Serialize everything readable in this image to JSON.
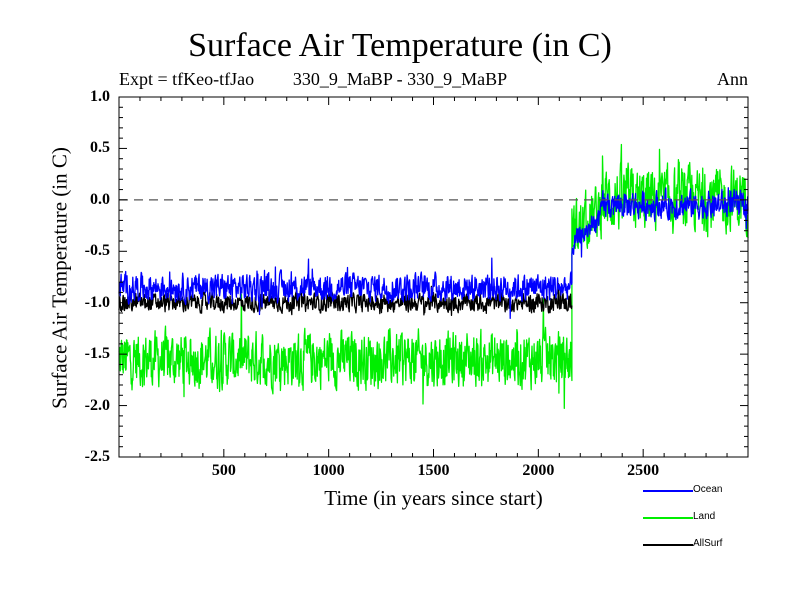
{
  "chart_data": {
    "type": "line",
    "title": "Surface Air Temperature (in C)",
    "subtitle": "330_9_MaBP - 330_9_MaBP",
    "experiment": "Expt = tfKeo-tfJao",
    "season": "Ann",
    "xlabel": "Time (in years since start)",
    "ylabel": "Surface Air Temperature (in C)",
    "xlim": [
      0,
      3000
    ],
    "ylim": [
      -2.5,
      1.0
    ],
    "xticks": [
      "500",
      "1000",
      "1500",
      "2000",
      "2500"
    ],
    "yticks": [
      "1.0",
      "0.5",
      "0.0",
      "-0.5",
      "-1.0",
      "-1.5",
      "-2.0",
      "-2.5"
    ],
    "reference_line": {
      "y": 0.0,
      "style": "dashed"
    },
    "legend_position": "below-right",
    "series": [
      {
        "name": "Land",
        "color": "#00ee00",
        "segments": [
          {
            "x_start": 0,
            "x_end": 2160,
            "mean": -1.55,
            "amplitude": 0.3
          },
          {
            "x_start": 2160,
            "x_end": 2300,
            "mean_start": -0.3,
            "mean_end": -0.1,
            "amplitude": 0.3
          },
          {
            "x_start": 2300,
            "x_end": 3000,
            "mean": 0.0,
            "amplitude": 0.35
          }
        ]
      },
      {
        "name": "AllSurf",
        "color": "#000000",
        "segments": [
          {
            "x_start": 0,
            "x_end": 2160,
            "mean": -1.0,
            "amplitude": 0.1
          }
        ]
      },
      {
        "name": "Ocean",
        "color": "#0000ff",
        "segments": [
          {
            "x_start": 0,
            "x_end": 2160,
            "mean": -0.85,
            "amplitude": 0.15
          },
          {
            "x_start": 2160,
            "x_end": 2300,
            "mean_start": -0.45,
            "mean_end": -0.15,
            "amplitude": 0.12
          },
          {
            "x_start": 2300,
            "x_end": 3000,
            "mean": -0.05,
            "amplitude": 0.15
          }
        ]
      }
    ],
    "legend": [
      {
        "name": "Ocean",
        "color": "#0000ff"
      },
      {
        "name": "Land",
        "color": "#00ee00"
      },
      {
        "name": "AllSurf",
        "color": "#000000"
      }
    ]
  }
}
